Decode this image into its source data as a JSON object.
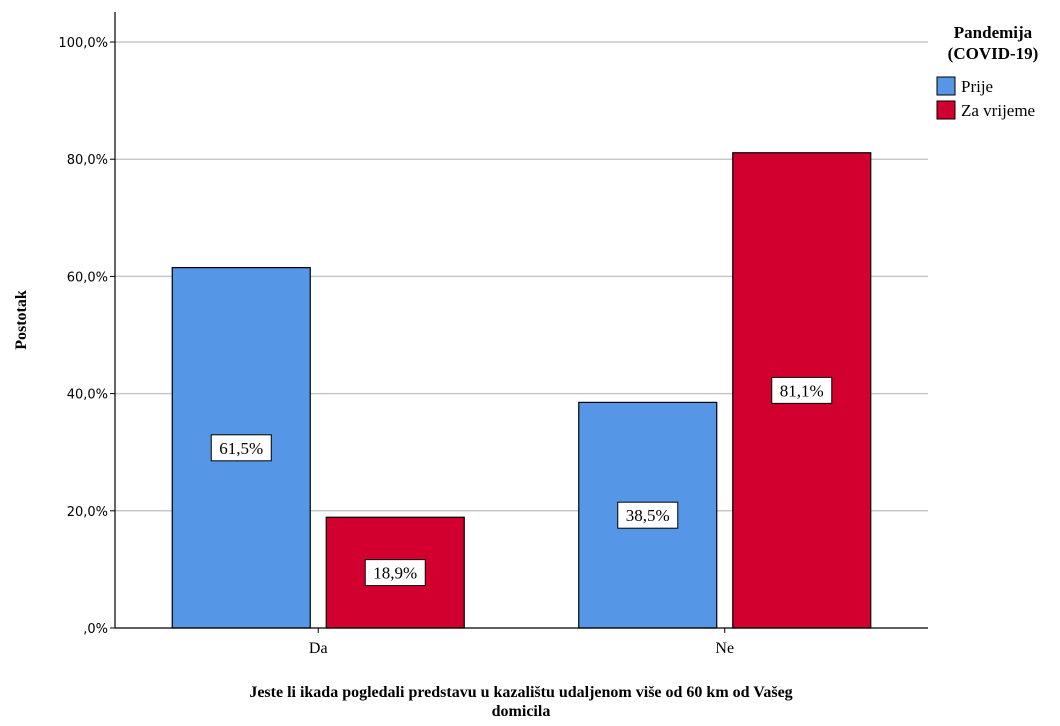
{
  "chart_data": {
    "type": "bar",
    "categories": [
      "Da",
      "Ne"
    ],
    "series": [
      {
        "name": "Prije",
        "values": [
          61.5,
          38.5
        ],
        "color": "#5596e6",
        "labels": [
          "61,5%",
          "38,5%"
        ]
      },
      {
        "name": "Za vrijeme",
        "values": [
          18.9,
          81.1
        ],
        "color": "#d2002e",
        "labels": [
          "18,9%",
          "81,1%"
        ]
      }
    ],
    "ylabel": "Postotak",
    "xlabel_lines": [
      "Jeste li ikada pogledali predstavu u kazalištu udaljenom više od 60 km od Vašeg",
      "domicila"
    ],
    "ylim": [
      0,
      100
    ],
    "yticks": [
      0,
      20,
      40,
      60,
      80,
      100
    ],
    "ytick_labels": [
      ",0%",
      "20,0%",
      "40,0%",
      "60,0%",
      "80,0%",
      "100,0%"
    ],
    "grid": "horizontal",
    "legend": {
      "title_lines": [
        "Pandemija",
        "(COVID-19)"
      ],
      "position": "top-right"
    }
  }
}
